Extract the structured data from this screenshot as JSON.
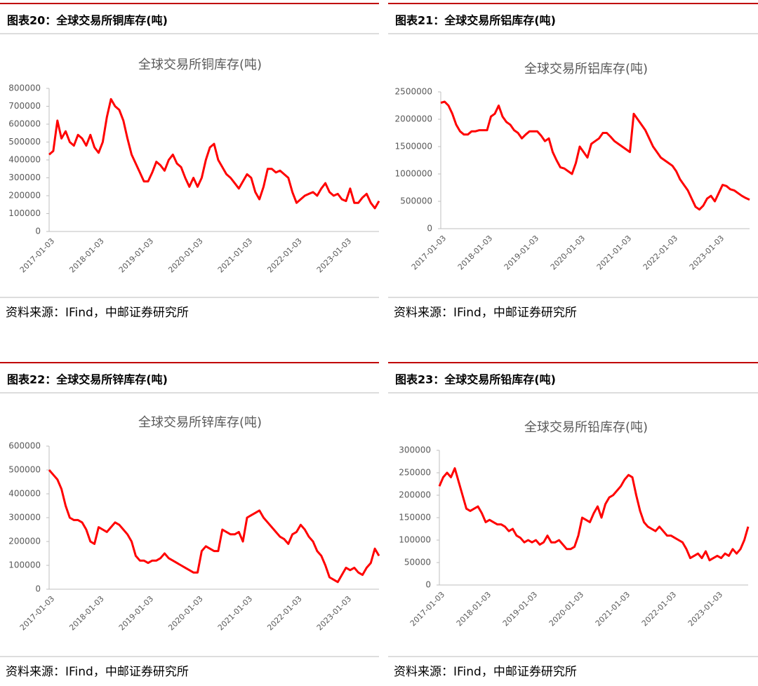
{
  "chart_data": [
    {
      "type": "line",
      "caption": "图表20：全球交易所铜库存(吨)",
      "title": "全球交易所铜库存(吨)",
      "source": "资料来源：IFind，中邮证券研究所",
      "color": "#ff0000",
      "categories": [
        "2017-01-03",
        null,
        null,
        null,
        null,
        null,
        null,
        null,
        null,
        null,
        null,
        null,
        "2018-01-03",
        null,
        null,
        null,
        null,
        null,
        null,
        null,
        null,
        null,
        null,
        null,
        "2019-01-03",
        null,
        null,
        null,
        null,
        null,
        null,
        null,
        null,
        null,
        null,
        null,
        "2020-01-03",
        null,
        null,
        null,
        null,
        null,
        null,
        null,
        null,
        null,
        null,
        null,
        "2021-01-03",
        null,
        null,
        null,
        null,
        null,
        null,
        null,
        null,
        null,
        null,
        null,
        "2022-01-03",
        null,
        null,
        null,
        null,
        null,
        null,
        null,
        null,
        null,
        null,
        null,
        "2023-01-03",
        null,
        null,
        null,
        null,
        null,
        null,
        null,
        null
      ],
      "values": [
        430000,
        450000,
        620000,
        520000,
        560000,
        500000,
        480000,
        540000,
        520000,
        480000,
        540000,
        470000,
        440000,
        500000,
        640000,
        740000,
        700000,
        680000,
        620000,
        520000,
        430000,
        380000,
        330000,
        280000,
        280000,
        330000,
        390000,
        370000,
        340000,
        400000,
        430000,
        380000,
        360000,
        300000,
        250000,
        300000,
        250000,
        300000,
        400000,
        470000,
        490000,
        400000,
        360000,
        320000,
        300000,
        270000,
        240000,
        280000,
        320000,
        300000,
        220000,
        180000,
        250000,
        350000,
        350000,
        330000,
        340000,
        320000,
        300000,
        220000,
        160000,
        180000,
        200000,
        210000,
        220000,
        200000,
        240000,
        270000,
        220000,
        200000,
        210000,
        180000,
        170000,
        240000,
        160000,
        160000,
        190000,
        210000,
        160000,
        130000,
        170000
      ],
      "ylim": [
        0,
        800000
      ],
      "yticks": [
        0,
        100000,
        200000,
        300000,
        400000,
        500000,
        600000,
        700000,
        800000
      ]
    },
    {
      "type": "line",
      "caption": "图表21：全球交易所铝库存(吨)",
      "title": "全球交易所铝库存(吨)",
      "source": "资料来源：IFind，中邮证券研究所",
      "color": "#ff0000",
      "categories": [
        "2017-01-03",
        null,
        null,
        null,
        null,
        null,
        null,
        null,
        null,
        null,
        null,
        null,
        "2018-01-03",
        null,
        null,
        null,
        null,
        null,
        null,
        null,
        null,
        null,
        null,
        null,
        "2019-01-03",
        null,
        null,
        null,
        null,
        null,
        null,
        null,
        null,
        null,
        null,
        null,
        "2020-01-03",
        null,
        null,
        null,
        null,
        null,
        null,
        null,
        null,
        null,
        null,
        null,
        "2021-01-03",
        null,
        null,
        null,
        null,
        null,
        null,
        null,
        null,
        null,
        null,
        null,
        "2022-01-03",
        null,
        null,
        null,
        null,
        null,
        null,
        null,
        null,
        null,
        null,
        null,
        "2023-01-03",
        null,
        null,
        null,
        null,
        null,
        null,
        null,
        null
      ],
      "values": [
        2300000,
        2320000,
        2250000,
        2100000,
        1900000,
        1780000,
        1720000,
        1720000,
        1780000,
        1780000,
        1800000,
        1800000,
        1800000,
        2050000,
        2100000,
        2250000,
        2050000,
        1950000,
        1900000,
        1800000,
        1750000,
        1650000,
        1720000,
        1780000,
        1780000,
        1780000,
        1700000,
        1600000,
        1650000,
        1400000,
        1250000,
        1120000,
        1100000,
        1050000,
        1000000,
        1200000,
        1500000,
        1400000,
        1300000,
        1550000,
        1600000,
        1650000,
        1750000,
        1750000,
        1680000,
        1600000,
        1550000,
        1500000,
        1450000,
        1400000,
        2100000,
        2000000,
        1900000,
        1800000,
        1650000,
        1500000,
        1400000,
        1300000,
        1250000,
        1200000,
        1150000,
        1050000,
        900000,
        800000,
        700000,
        550000,
        400000,
        350000,
        420000,
        550000,
        600000,
        500000,
        650000,
        800000,
        780000,
        720000,
        700000,
        650000,
        600000,
        560000,
        530000
      ],
      "ylim": [
        0,
        2500000
      ],
      "yticks": [
        0,
        500000,
        1000000,
        1500000,
        2000000,
        2500000
      ]
    },
    {
      "type": "line",
      "caption": "图表22：全球交易所锌库存(吨)",
      "title": "全球交易所锌库存(吨)",
      "source": "资料来源：IFind，中邮证券研究所",
      "color": "#ff0000",
      "categories": [
        "2017-01-03",
        null,
        null,
        null,
        null,
        null,
        null,
        null,
        null,
        null,
        null,
        null,
        "2018-01-03",
        null,
        null,
        null,
        null,
        null,
        null,
        null,
        null,
        null,
        null,
        null,
        "2019-01-03",
        null,
        null,
        null,
        null,
        null,
        null,
        null,
        null,
        null,
        null,
        null,
        "2020-01-03",
        null,
        null,
        null,
        null,
        null,
        null,
        null,
        null,
        null,
        null,
        null,
        "2021-01-03",
        null,
        null,
        null,
        null,
        null,
        null,
        null,
        null,
        null,
        null,
        null,
        "2022-01-03",
        null,
        null,
        null,
        null,
        null,
        null,
        null,
        null,
        null,
        null,
        null,
        "2023-01-03",
        null,
        null,
        null,
        null,
        null,
        null,
        null,
        null
      ],
      "values": [
        500000,
        480000,
        460000,
        420000,
        350000,
        300000,
        290000,
        290000,
        280000,
        250000,
        200000,
        190000,
        260000,
        250000,
        240000,
        260000,
        280000,
        270000,
        250000,
        230000,
        200000,
        140000,
        120000,
        120000,
        110000,
        120000,
        120000,
        130000,
        150000,
        130000,
        120000,
        110000,
        100000,
        90000,
        80000,
        70000,
        70000,
        160000,
        180000,
        170000,
        160000,
        160000,
        250000,
        240000,
        230000,
        230000,
        240000,
        200000,
        300000,
        310000,
        320000,
        330000,
        300000,
        280000,
        260000,
        240000,
        220000,
        210000,
        190000,
        230000,
        240000,
        270000,
        250000,
        220000,
        200000,
        160000,
        140000,
        100000,
        50000,
        40000,
        30000,
        60000,
        90000,
        80000,
        90000,
        70000,
        60000,
        90000,
        110000,
        170000,
        140000
      ],
      "ylim": [
        0,
        600000
      ],
      "yticks": [
        0,
        100000,
        200000,
        300000,
        400000,
        500000,
        600000
      ]
    },
    {
      "type": "line",
      "caption": "图表23：全球交易所铅库存(吨)",
      "title": "全球交易所铅库存(吨)",
      "source": "资料来源：IFind，中邮证券研究所",
      "color": "#ff0000",
      "categories": [
        "2017-01-03",
        null,
        null,
        null,
        null,
        null,
        null,
        null,
        null,
        null,
        null,
        null,
        "2018-01-03",
        null,
        null,
        null,
        null,
        null,
        null,
        null,
        null,
        null,
        null,
        null,
        "2019-01-03",
        null,
        null,
        null,
        null,
        null,
        null,
        null,
        null,
        null,
        null,
        null,
        "2020-01-03",
        null,
        null,
        null,
        null,
        null,
        null,
        null,
        null,
        null,
        null,
        null,
        "2021-01-03",
        null,
        null,
        null,
        null,
        null,
        null,
        null,
        null,
        null,
        null,
        null,
        "2022-01-03",
        null,
        null,
        null,
        null,
        null,
        null,
        null,
        null,
        null,
        null,
        null,
        "2023-01-03",
        null,
        null,
        null,
        null,
        null,
        null,
        null,
        null
      ],
      "values": [
        220000,
        240000,
        250000,
        240000,
        260000,
        230000,
        200000,
        170000,
        165000,
        170000,
        175000,
        160000,
        140000,
        145000,
        140000,
        135000,
        135000,
        130000,
        120000,
        125000,
        110000,
        105000,
        95000,
        100000,
        95000,
        100000,
        90000,
        95000,
        110000,
        95000,
        95000,
        100000,
        90000,
        80000,
        80000,
        85000,
        110000,
        150000,
        145000,
        140000,
        160000,
        175000,
        150000,
        180000,
        195000,
        200000,
        210000,
        220000,
        235000,
        245000,
        240000,
        200000,
        165000,
        140000,
        130000,
        125000,
        120000,
        130000,
        120000,
        110000,
        110000,
        105000,
        100000,
        95000,
        80000,
        60000,
        65000,
        70000,
        60000,
        75000,
        55000,
        60000,
        65000,
        60000,
        70000,
        65000,
        80000,
        70000,
        80000,
        100000,
        130000
      ],
      "ylim": [
        0,
        300000
      ],
      "yticks": [
        0,
        50000,
        100000,
        150000,
        200000,
        250000,
        300000
      ]
    }
  ]
}
